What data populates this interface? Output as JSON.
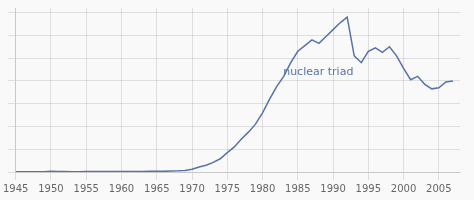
{
  "chart_data": {
    "type": "line",
    "x": [
      1945,
      1946,
      1947,
      1948,
      1949,
      1950,
      1951,
      1952,
      1953,
      1954,
      1955,
      1956,
      1957,
      1958,
      1959,
      1960,
      1961,
      1962,
      1963,
      1964,
      1965,
      1966,
      1967,
      1968,
      1969,
      1970,
      1971,
      1972,
      1973,
      1974,
      1975,
      1976,
      1977,
      1978,
      1979,
      1980,
      1981,
      1982,
      1983,
      1984,
      1985,
      1986,
      1987,
      1988,
      1989,
      1990,
      1991,
      1992,
      1993,
      1994,
      1995,
      1996,
      1997,
      1998,
      1999,
      2000,
      2001,
      2002,
      2003,
      2004,
      2005,
      2006,
      2007
    ],
    "values": [
      0.001,
      0.001,
      0.001,
      0.001,
      0.001,
      0.003,
      0.002,
      0.002,
      0.001,
      0.001,
      0.002,
      0.002,
      0.002,
      0.002,
      0.002,
      0.002,
      0.002,
      0.002,
      0.002,
      0.003,
      0.003,
      0.003,
      0.004,
      0.005,
      0.007,
      0.012,
      0.022,
      0.03,
      0.042,
      0.058,
      0.085,
      0.11,
      0.145,
      0.175,
      0.21,
      0.26,
      0.32,
      0.375,
      0.42,
      0.48,
      0.53,
      0.555,
      0.58,
      0.565,
      0.595,
      0.625,
      0.655,
      0.68,
      0.51,
      0.48,
      0.53,
      0.545,
      0.525,
      0.55,
      0.51,
      0.455,
      0.405,
      0.42,
      0.385,
      0.365,
      0.37,
      0.395,
      0.4
    ],
    "color": "#5872a7",
    "annotations": [
      {
        "text": "nuclear triad",
        "x": 1982.5,
        "y": 0.44
      }
    ],
    "xlim": [
      1945,
      2008
    ],
    "ylim": [
      0,
      0.72
    ],
    "xticks": [
      1945,
      1950,
      1955,
      1960,
      1965,
      1970,
      1975,
      1980,
      1985,
      1990,
      1995,
      2000,
      2005
    ],
    "yticks": [
      0,
      0.1,
      0.2,
      0.3,
      0.4,
      0.5,
      0.6,
      0.7
    ],
    "grid": true,
    "tick_labels": "x"
  }
}
